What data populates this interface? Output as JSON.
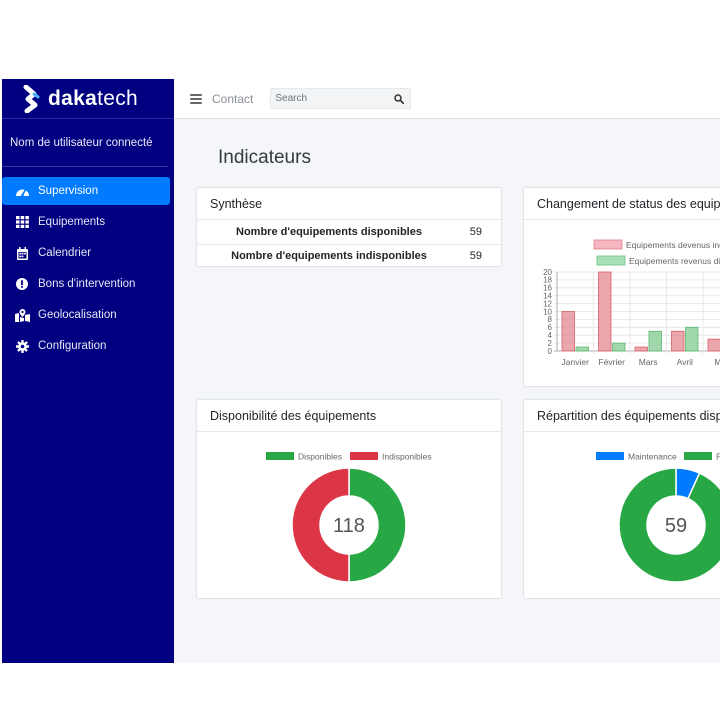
{
  "brand": {
    "name_bold": "daka",
    "name_regular": "tech"
  },
  "user_panel": {
    "username": "Nom de utilisateur connecté"
  },
  "sidebar": {
    "items": [
      {
        "label": "Supervision",
        "icon": "gauge-icon",
        "active": true
      },
      {
        "label": "Equipements",
        "icon": "grid-icon"
      },
      {
        "label": "Calendrier",
        "icon": "calendar-icon"
      },
      {
        "label": "Bons d'intervention",
        "icon": "exclamation-circle-icon"
      },
      {
        "label": "Geolocalisation",
        "icon": "map-marker-icon"
      },
      {
        "label": "Configuration",
        "icon": "gear-icon"
      }
    ]
  },
  "topbar": {
    "contact_label": "Contact",
    "search_placeholder": "Search"
  },
  "main": {
    "title": "Indicateurs",
    "synthese": {
      "title": "Synthèse",
      "rows": [
        {
          "label": "Nombre d'equipements disponibles",
          "value": "59"
        },
        {
          "label": "Nombre d'equipements indisponibles",
          "value": "59"
        }
      ]
    },
    "status_card": {
      "title": "Changement de status des equipements"
    },
    "dispo_card": {
      "title": "Disponibilité des équipements"
    },
    "repartition_card": {
      "title": "Répartition des équipements disponibles"
    }
  },
  "colors": {
    "sidebar_bg": "#000080",
    "active": "#007bff",
    "red": "#dc3545",
    "green": "#28a745",
    "blue": "#007bff"
  },
  "chart_data": [
    {
      "type": "bar",
      "categories": [
        "Janvier",
        "Février",
        "Mars",
        "Avril",
        "Mai"
      ],
      "series": [
        {
          "name": "Equipements devenus indisponibles",
          "values": [
            10,
            20,
            1,
            5,
            3
          ],
          "color": "#e8959d"
        },
        {
          "name": "Equipements revenus disponibles",
          "values": [
            1,
            2,
            5,
            6,
            2
          ],
          "color": "#8fd19e"
        }
      ],
      "yticks": [
        0,
        2,
        4,
        6,
        8,
        10,
        12,
        14,
        16,
        18,
        20
      ],
      "ylim": [
        0,
        20
      ],
      "legend": "top",
      "grid": true
    },
    {
      "type": "pie",
      "variant": "doughnut",
      "labels": [
        "Disponibles",
        "Indisponibles"
      ],
      "values": [
        59,
        59
      ],
      "colors": [
        "#28a745",
        "#dc3545"
      ],
      "center_label": "118",
      "legend": "top"
    },
    {
      "type": "pie",
      "variant": "doughnut",
      "labels": [
        "Maintenance",
        "Fonctionnel"
      ],
      "values": [
        4,
        55
      ],
      "colors": [
        "#007bff",
        "#28a745"
      ],
      "center_label": "59",
      "legend": "top"
    }
  ]
}
